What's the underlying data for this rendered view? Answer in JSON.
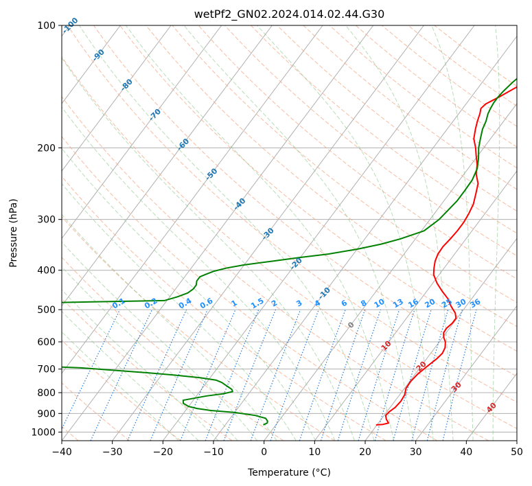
{
  "chart_data": {
    "type": "line",
    "title": "wetPf2_GN02.2024.014.02.44.G30",
    "xlabel": "Temperature (°C)",
    "ylabel": "Pressure (hPa)",
    "xlim": [
      -40,
      50
    ],
    "ylim": [
      1050,
      100
    ],
    "y_scale": "log",
    "grid": true,
    "x_ticks": [
      -40,
      -30,
      -20,
      -10,
      0,
      10,
      20,
      30,
      40,
      50
    ],
    "y_ticks": [
      1000,
      900,
      800,
      700,
      600,
      500,
      400,
      300,
      200,
      100
    ],
    "series": [
      {
        "color": "#ff0000",
        "pressure": [
          960,
          958,
          950,
          930,
          910,
          890,
          870,
          840,
          810,
          780,
          750,
          720,
          690,
          660,
          640,
          620,
          600,
          585,
          570,
          555,
          540,
          525,
          510,
          490,
          470,
          450,
          430,
          410,
          395,
          380,
          365,
          350,
          335,
          320,
          305,
          290,
          275,
          260,
          245,
          232,
          220,
          210,
          200,
          190,
          180,
          172,
          165,
          160,
          156,
          150,
          145,
          140,
          135,
          130,
          125,
          120,
          115,
          110,
          105,
          100
        ],
        "temperature": [
          19.8,
          21,
          22,
          21,
          20.3,
          20.5,
          21,
          21.2,
          21,
          20.3,
          20.2,
          20.5,
          21.2,
          22,
          22.3,
          22,
          21.2,
          20.2,
          19.5,
          19.4,
          19.8,
          19.8,
          18.9,
          17,
          15.3,
          13,
          10.8,
          8.9,
          8,
          7.2,
          6.7,
          6.6,
          6.9,
          7.1,
          7.1,
          6.8,
          6.3,
          5.3,
          4.2,
          2.4,
          1.2,
          -0.2,
          -1.6,
          -3.3,
          -4.4,
          -5.2,
          -5.8,
          -6.4,
          -6.1,
          -4.5,
          -3.3,
          -2,
          -0.2,
          1.2,
          2.6,
          4.1,
          5.5,
          7.1,
          8.5,
          10
        ]
      },
      {
        "color": "#008000",
        "pressure": [
          960,
          950,
          940,
          925,
          910,
          895,
          885,
          875,
          865,
          850,
          835,
          825,
          815,
          805,
          795,
          785,
          775,
          765,
          755,
          745,
          735,
          725,
          715,
          705,
          695,
          685,
          660,
          630,
          600,
          570,
          540,
          510,
          490,
          475,
          465,
          455,
          445,
          435,
          425,
          415,
          408,
          402,
          395,
          388,
          380,
          372,
          365,
          355,
          345,
          335,
          320,
          300,
          285,
          270,
          255,
          240,
          225,
          212,
          200,
          190,
          180,
          172,
          165,
          160,
          155,
          150,
          145,
          138,
          130,
          123,
          116,
          108,
          100
        ],
        "temperature": [
          -2.5,
          -2,
          -2.2,
          -3,
          -5.5,
          -10,
          -15,
          -18,
          -20,
          -21.5,
          -22,
          -20,
          -18,
          -15,
          -13.5,
          -14,
          -15,
          -16,
          -17,
          -18.5,
          -22,
          -27,
          -33,
          -40,
          -47,
          -60,
          -80,
          -100,
          -100,
          -100,
          -100,
          -100,
          -100,
          -40.5,
          -38.5,
          -37,
          -36.5,
          -36.5,
          -37,
          -37,
          -36,
          -35,
          -33,
          -30,
          -25,
          -20,
          -15,
          -10,
          -6,
          -3,
          0.5,
          1.8,
          2.2,
          2.6,
          2.6,
          2.5,
          1.8,
          0.5,
          -1,
          -2,
          -3,
          -3.5,
          -4.2,
          -4.5,
          -4.7,
          -4.7,
          -4.5,
          -4,
          -3.1,
          -2,
          -1,
          0.3,
          1.8
        ]
      }
    ],
    "dry_adiabat_labels": [
      "-100",
      "-90",
      "-80",
      "-70",
      "-60",
      "-50",
      "-40",
      "-30",
      "-20",
      "-10",
      "0",
      "10",
      "20",
      "30",
      "40"
    ],
    "mixing_ratio_labels": [
      "0.1",
      "0.2",
      "0.4",
      "0.6",
      "1",
      "1.5",
      "2",
      "3",
      "4",
      "6",
      "8",
      "10",
      "13",
      "16",
      "20",
      "25",
      "30",
      "36"
    ],
    "mixing_ratio_values": [
      0.1,
      0.2,
      0.4,
      0.6,
      1,
      1.5,
      2,
      3,
      4,
      6,
      8,
      10,
      13,
      16,
      20,
      25,
      30,
      36
    ]
  }
}
